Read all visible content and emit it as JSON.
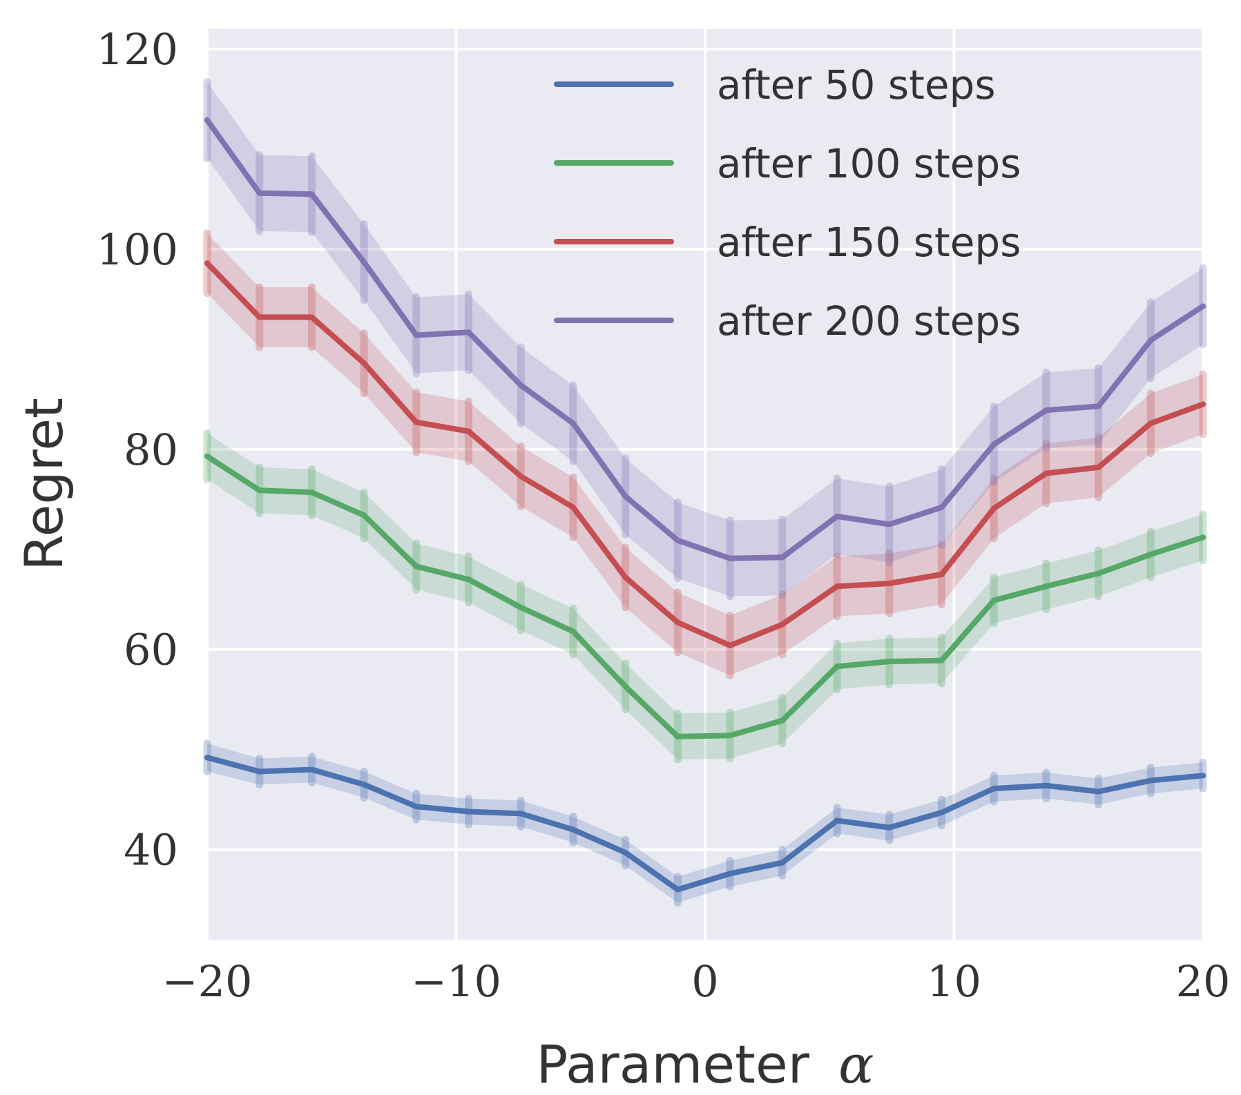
{
  "chart_data": {
    "type": "line",
    "title": "",
    "xlabel": "Parameter",
    "xlabel_symbol": "α",
    "ylabel": "Regret",
    "xlim": [
      -20,
      20
    ],
    "ylim": [
      31,
      122
    ],
    "xticks": [
      -20,
      -10,
      0,
      10,
      20
    ],
    "xtick_labels": [
      "−20",
      "−10",
      "0",
      "10",
      "20"
    ],
    "yticks": [
      40,
      60,
      80,
      100,
      120
    ],
    "ytick_labels": [
      "40",
      "60",
      "80",
      "100",
      "120"
    ],
    "grid": true,
    "legend_position": "top-right",
    "x": [
      -20,
      -17.9,
      -15.8,
      -13.7,
      -11.6,
      -9.5,
      -7.4,
      -5.3,
      -3.2,
      -1.1,
      1.0,
      3.1,
      5.3,
      7.4,
      9.5,
      11.6,
      13.7,
      15.8,
      17.9,
      20
    ],
    "series": [
      {
        "name": "after 50 steps",
        "color": "#4c72b0",
        "values": [
          49.2,
          47.8,
          48.0,
          46.5,
          44.3,
          43.8,
          43.6,
          42.0,
          39.7,
          36.0,
          37.6,
          38.7,
          42.9,
          42.2,
          43.7,
          46.1,
          46.4,
          45.8,
          46.9,
          47.4
        ],
        "errors": [
          1.4,
          1.3,
          1.3,
          1.3,
          1.3,
          1.3,
          1.3,
          1.3,
          1.3,
          1.3,
          1.3,
          1.3,
          1.3,
          1.3,
          1.3,
          1.3,
          1.3,
          1.3,
          1.3,
          1.3
        ]
      },
      {
        "name": "after 100 steps",
        "color": "#55a868",
        "values": [
          79.3,
          75.9,
          75.7,
          73.4,
          68.3,
          67.0,
          64.2,
          61.8,
          56.3,
          51.3,
          51.4,
          52.9,
          58.3,
          58.8,
          58.9,
          64.9,
          66.3,
          67.6,
          69.5,
          71.2
        ],
        "errors": [
          2.3,
          2.3,
          2.3,
          2.3,
          2.3,
          2.3,
          2.3,
          2.3,
          2.3,
          2.3,
          2.3,
          2.3,
          2.3,
          2.3,
          2.3,
          2.3,
          2.3,
          2.3,
          2.3,
          2.3
        ]
      },
      {
        "name": "after 150 steps",
        "color": "#c44e52",
        "values": [
          98.6,
          93.2,
          93.2,
          88.6,
          82.7,
          81.8,
          77.3,
          74.2,
          67.2,
          62.7,
          60.4,
          62.5,
          66.3,
          66.6,
          67.5,
          74.1,
          77.6,
          78.2,
          82.6,
          84.5
        ],
        "errors": [
          3.0,
          3.0,
          3.0,
          3.0,
          3.0,
          3.0,
          3.0,
          3.0,
          3.0,
          3.0,
          3.0,
          3.0,
          3.0,
          3.0,
          3.0,
          3.0,
          3.0,
          3.0,
          3.0,
          3.0
        ]
      },
      {
        "name": "after 200 steps",
        "color": "#8172b2",
        "values": [
          112.9,
          105.6,
          105.5,
          98.7,
          91.4,
          91.7,
          86.4,
          82.6,
          75.3,
          70.9,
          69.1,
          69.2,
          73.3,
          72.5,
          74.2,
          80.5,
          83.9,
          84.3,
          90.9,
          94.3
        ],
        "errors": [
          3.8,
          3.8,
          3.8,
          3.8,
          3.8,
          3.8,
          3.8,
          3.8,
          3.8,
          3.8,
          3.8,
          3.8,
          3.8,
          3.8,
          3.8,
          3.8,
          3.8,
          3.8,
          3.8,
          3.8
        ]
      }
    ]
  }
}
